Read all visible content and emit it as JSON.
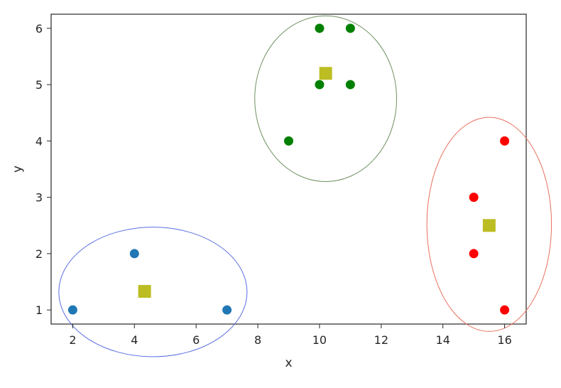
{
  "chart_data": {
    "type": "scatter",
    "title": "",
    "xlabel": "x",
    "ylabel": "y",
    "xlim": [
      1.3,
      16.7
    ],
    "ylim": [
      0.75,
      6.25
    ],
    "xticks": [
      2,
      4,
      6,
      8,
      10,
      12,
      14,
      16
    ],
    "yticks": [
      1,
      2,
      3,
      4,
      5,
      6
    ],
    "grid": false,
    "legend": "none",
    "series": [
      {
        "color": "#1f77b4",
        "marker": "circle",
        "points": [
          [
            2,
            1
          ],
          [
            4,
            2
          ],
          [
            7,
            1
          ]
        ]
      },
      {
        "color": "#008000",
        "marker": "circle",
        "points": [
          [
            9,
            4
          ],
          [
            10,
            5
          ],
          [
            10,
            6
          ],
          [
            11,
            5
          ],
          [
            11,
            6
          ]
        ]
      },
      {
        "color": "#ff0000",
        "marker": "circle",
        "points": [
          [
            15,
            2
          ],
          [
            15,
            3
          ],
          [
            16,
            1
          ],
          [
            16,
            4
          ]
        ]
      },
      {
        "color": "#bcbd22",
        "marker": "square",
        "points": [
          [
            4.33,
            1.33
          ],
          [
            10.2,
            5.2
          ],
          [
            15.5,
            2.5
          ]
        ]
      }
    ],
    "ellipses": [
      {
        "cx": 4.6,
        "cy": 1.32,
        "rx": 3.05,
        "ry": 1.15,
        "color": "#5b6ee1"
      },
      {
        "cx": 10.2,
        "cy": 4.75,
        "rx": 2.3,
        "ry": 1.47,
        "color": "#6e9060"
      },
      {
        "cx": 15.5,
        "cy": 2.52,
        "rx": 2.02,
        "ry": 1.9,
        "color": "#e8715e"
      }
    ]
  }
}
